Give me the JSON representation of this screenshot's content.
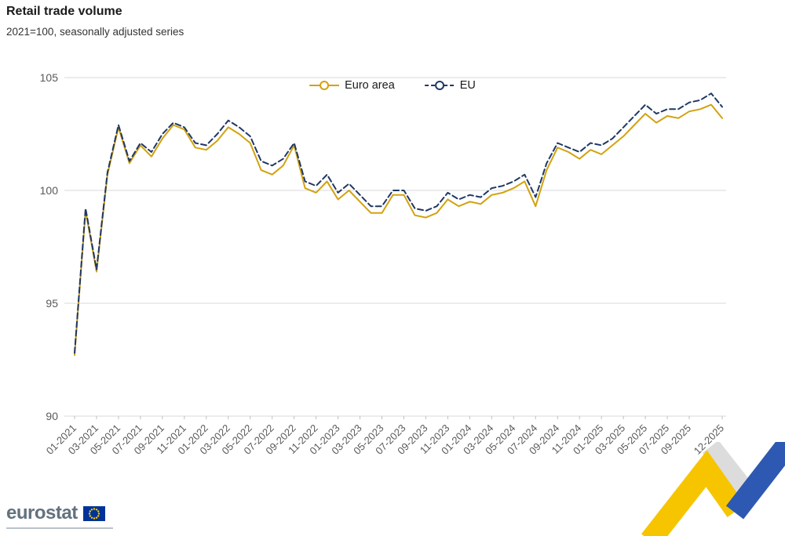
{
  "header": {
    "title": "Retail trade volume",
    "subtitle": "2021=100, seasonally adjusted series"
  },
  "footer": {
    "logo_text": "eurostat"
  },
  "colors": {
    "euro_area_line": "#D2A210",
    "eu_line": "#1F3864",
    "gridline": "#d9d9d9",
    "tick_text": "#595959",
    "flag_blue": "#003399",
    "flag_star_yellow": "#FFCC00",
    "deco_yellow": "#F6C500",
    "deco_blue": "#2E59B2",
    "deco_gray": "#dcdcdc"
  },
  "chart_data": {
    "type": "line",
    "title": "Retail trade volume",
    "subtitle": "2021=100, seasonally adjusted series",
    "x_start": "01-2021",
    "x_end": "12-2025",
    "x_freq": "monthly",
    "ylim": [
      90,
      105
    ],
    "yticks": [
      90,
      95,
      100,
      105
    ],
    "grid": "horizontal",
    "legend_position": "top-center",
    "x_tick_labels": [
      "01-2021",
      "03-2021",
      "05-2021",
      "07-2021",
      "09-2021",
      "11-2021",
      "01-2022",
      "03-2022",
      "05-2022",
      "07-2022",
      "09-2022",
      "11-2022",
      "01-2023",
      "03-2023",
      "05-2023",
      "07-2023",
      "09-2023",
      "11-2023",
      "01-2024",
      "03-2024",
      "05-2024",
      "07-2024",
      "09-2024",
      "11-2024",
      "01-2025",
      "03-2025",
      "05-2025",
      "07-2025",
      "09-2025",
      "12-2025"
    ],
    "series": [
      {
        "name": "Euro area",
        "color": "#D2A210",
        "style": "solid",
        "values": [
          92.7,
          99.1,
          96.4,
          100.7,
          102.8,
          101.2,
          102.0,
          101.5,
          102.3,
          102.9,
          102.7,
          101.9,
          101.8,
          102.2,
          102.8,
          102.5,
          102.1,
          100.9,
          100.7,
          101.1,
          102.0,
          100.1,
          99.9,
          100.4,
          99.6,
          100.0,
          99.5,
          99.0,
          99.0,
          99.8,
          99.8,
          98.9,
          98.8,
          99.0,
          99.6,
          99.3,
          99.5,
          99.4,
          99.8,
          99.9,
          100.1,
          100.4,
          99.3,
          100.9,
          101.9,
          101.7,
          101.4,
          101.8,
          101.6,
          102.0,
          102.4,
          102.9,
          103.4,
          103.0,
          103.3,
          103.2,
          103.5,
          103.6,
          103.8,
          103.2
        ]
      },
      {
        "name": "EU",
        "color": "#1F3864",
        "style": "dashed",
        "values": [
          92.8,
          99.2,
          96.5,
          100.8,
          102.9,
          101.3,
          102.1,
          101.7,
          102.5,
          103.0,
          102.8,
          102.1,
          102.0,
          102.5,
          103.1,
          102.8,
          102.4,
          101.3,
          101.1,
          101.4,
          102.1,
          100.4,
          100.2,
          100.7,
          99.9,
          100.3,
          99.8,
          99.3,
          99.3,
          100.0,
          100.0,
          99.2,
          99.1,
          99.3,
          99.9,
          99.6,
          99.8,
          99.7,
          100.1,
          100.2,
          100.4,
          100.7,
          99.7,
          101.2,
          102.1,
          101.9,
          101.7,
          102.1,
          102.0,
          102.3,
          102.8,
          103.3,
          103.8,
          103.4,
          103.6,
          103.6,
          103.9,
          104.0,
          104.3,
          103.7
        ]
      }
    ]
  }
}
